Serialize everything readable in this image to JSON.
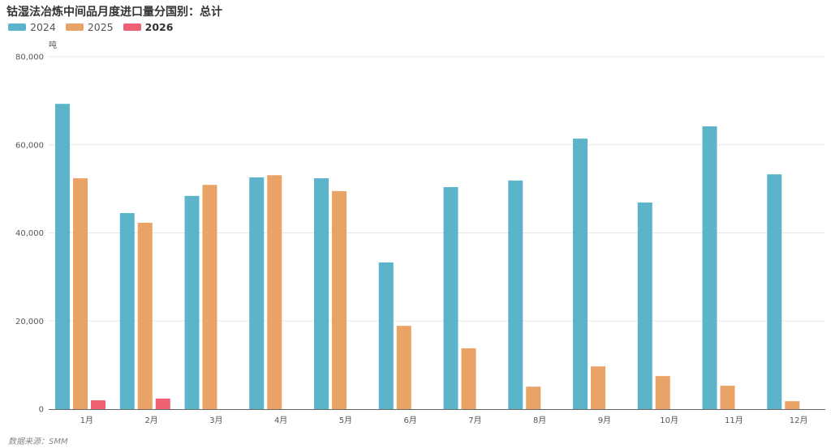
{
  "chart_data": {
    "type": "bar",
    "title": "钴湿法冶炼中间品月度进口量分国别：总计",
    "ylabel": "吨",
    "ylim": [
      0,
      80000
    ],
    "yticks": [
      "0",
      "20,000",
      "40,000",
      "60,000",
      "80,000"
    ],
    "grid": true,
    "legend_position": "top-left",
    "categories": [
      "1月",
      "2月",
      "3月",
      "4月",
      "5月",
      "6月",
      "7月",
      "8月",
      "9月",
      "10月",
      "11月",
      "12月"
    ],
    "series": [
      {
        "name": "2024",
        "color": "#5bb4c9",
        "values": [
          69300,
          44500,
          48400,
          52600,
          52400,
          33300,
          50400,
          51900,
          61400,
          46900,
          64200,
          53300
        ]
      },
      {
        "name": "2025",
        "color": "#e9a366",
        "values": [
          52400,
          42300,
          50900,
          53100,
          49500,
          18900,
          13800,
          5100,
          9700,
          7500,
          5300,
          1800
        ]
      },
      {
        "name": "2026",
        "color": "#ee6173",
        "values": [
          2000,
          2400,
          null,
          null,
          null,
          null,
          null,
          null,
          null,
          null,
          null,
          null
        ]
      }
    ],
    "source": "数据来源：SMM"
  }
}
